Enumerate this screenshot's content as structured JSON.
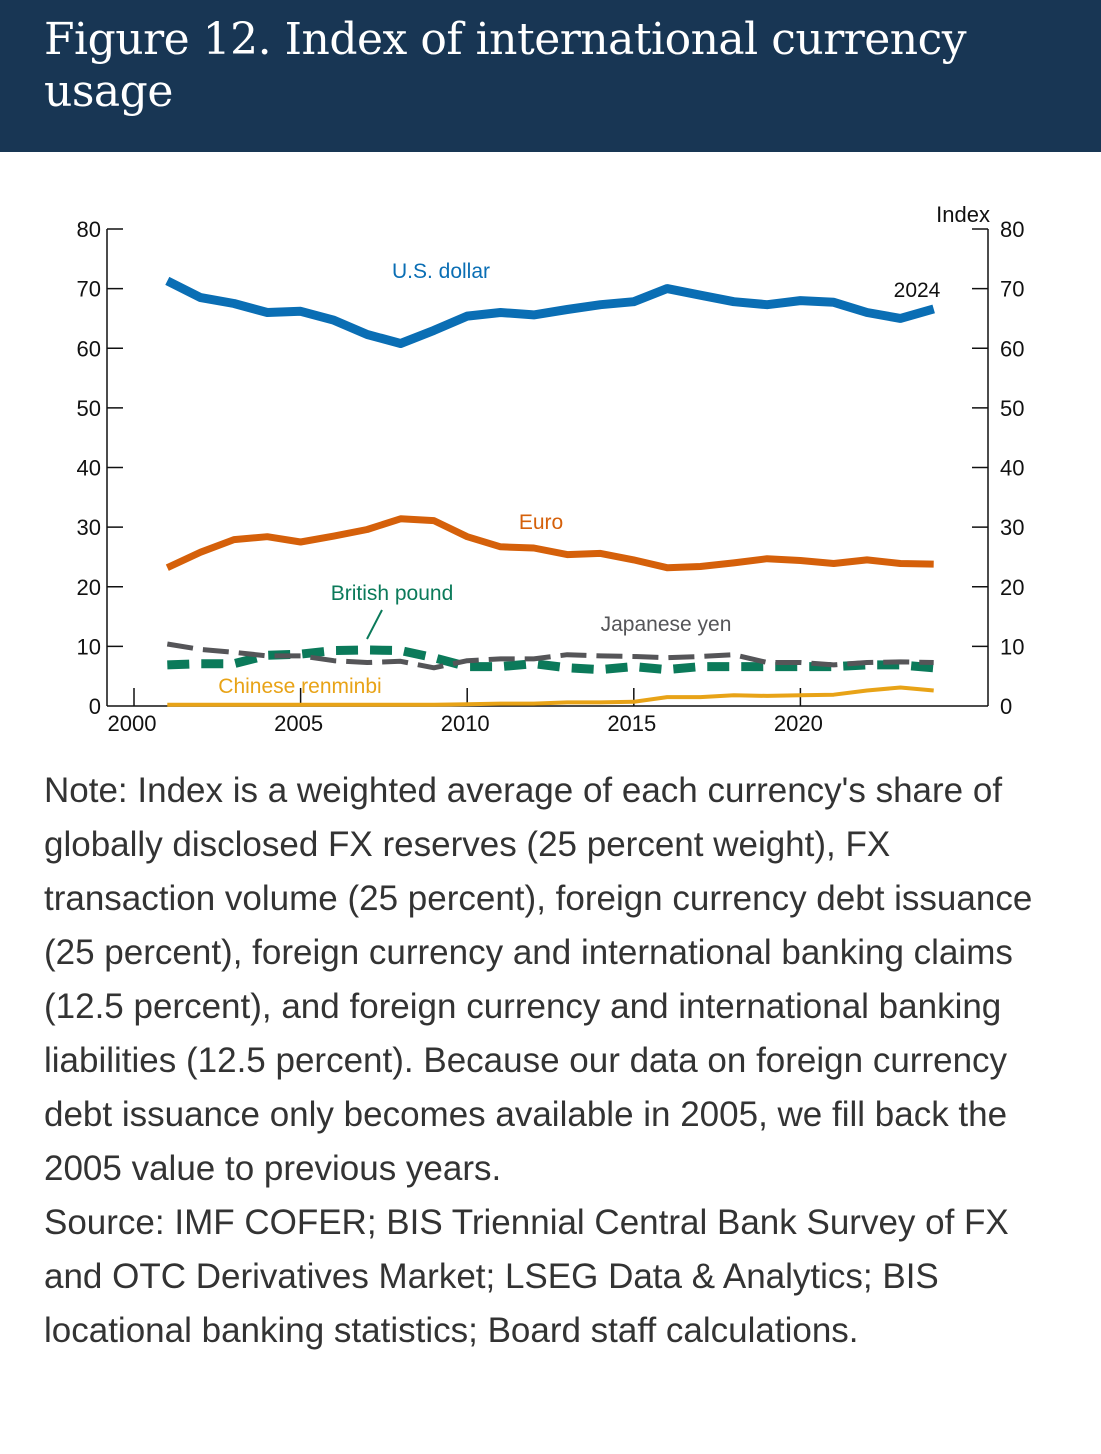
{
  "header": {
    "title": "Figure 12. Index of international currency usage"
  },
  "colors": {
    "header_bg": "#183654",
    "usd": "#0A6EB4",
    "eur": "#D5600A",
    "jpy": "#555558",
    "gbp": "#0B7A5A",
    "cny": "#E8A317"
  },
  "chart_data": {
    "type": "line",
    "title": "Index of international currency usage",
    "xlabel": "",
    "ylabel": "Index",
    "xlim": [
      2000,
      2025
    ],
    "ylim": [
      0,
      80
    ],
    "x_ticks": [
      2000,
      2005,
      2010,
      2015,
      2020
    ],
    "y_ticks": [
      0,
      10,
      20,
      30,
      40,
      50,
      60,
      70,
      80
    ],
    "grid": false,
    "legend": "inline labels",
    "end_label": "2024",
    "x": [
      2001,
      2002,
      2003,
      2004,
      2005,
      2006,
      2007,
      2008,
      2009,
      2010,
      2011,
      2012,
      2013,
      2014,
      2015,
      2016,
      2017,
      2018,
      2019,
      2020,
      2021,
      2022,
      2023,
      2024
    ],
    "series": [
      {
        "key": "usd",
        "name": "U.S. dollar",
        "style": "solid-thick",
        "values": [
          71.3,
          68.5,
          67.5,
          66.0,
          66.2,
          64.7,
          62.3,
          60.8,
          63.0,
          65.4,
          66.0,
          65.6,
          66.5,
          67.3,
          67.8,
          70.0,
          68.9,
          67.8,
          67.3,
          68.0,
          67.7,
          66.0,
          65.0,
          66.6
        ]
      },
      {
        "key": "eur",
        "name": "Euro",
        "style": "solid",
        "values": [
          23.2,
          25.8,
          27.9,
          28.4,
          27.5,
          28.5,
          29.6,
          31.4,
          31.1,
          28.4,
          26.7,
          26.5,
          25.4,
          25.6,
          24.5,
          23.2,
          23.4,
          24.0,
          24.7,
          24.4,
          23.9,
          24.5,
          23.9,
          23.8
        ]
      },
      {
        "key": "jpy",
        "name": "Japanese yen",
        "style": "dashed",
        "values": [
          10.4,
          9.5,
          9.0,
          8.4,
          8.4,
          7.6,
          7.3,
          7.5,
          6.4,
          7.6,
          7.9,
          7.9,
          8.6,
          8.4,
          8.3,
          8.1,
          8.3,
          8.6,
          7.3,
          7.3,
          6.9,
          7.3,
          7.4,
          7.3
        ]
      },
      {
        "key": "gbp",
        "name": "British pound",
        "style": "dashed-thick",
        "values": [
          6.9,
          7.1,
          7.1,
          8.5,
          8.7,
          9.3,
          9.4,
          9.3,
          8.1,
          6.6,
          6.6,
          7.1,
          6.4,
          6.1,
          6.6,
          6.1,
          6.6,
          6.6,
          6.6,
          6.6,
          6.6,
          6.9,
          6.9,
          6.4
        ]
      },
      {
        "key": "cny",
        "name": "Chinese renminbi",
        "style": "solid-thin",
        "values": [
          0.2,
          0.2,
          0.2,
          0.2,
          0.2,
          0.2,
          0.2,
          0.2,
          0.2,
          0.3,
          0.4,
          0.4,
          0.6,
          0.6,
          0.7,
          1.5,
          1.5,
          1.8,
          1.7,
          1.8,
          1.9,
          2.6,
          3.1,
          2.6
        ]
      }
    ]
  },
  "note": {
    "note_text": "Note: Index is a weighted average of each currency's share of globally disclosed FX reserves (25 percent weight), FX transaction volume (25 percent), foreign currency debt issuance (25 percent), foreign currency and international banking claims (12.5 percent), and foreign currency and international banking liabilities (12.5 percent). Because our data on foreign currency debt issuance only becomes available in 2005, we fill back the 2005 value to previous years.",
    "source_text": "Source: IMF COFER; BIS Triennial Central Bank Survey of FX and OTC Derivatives Market; LSEG Data & Analytics; BIS locational banking statistics; Board staff calculations."
  }
}
